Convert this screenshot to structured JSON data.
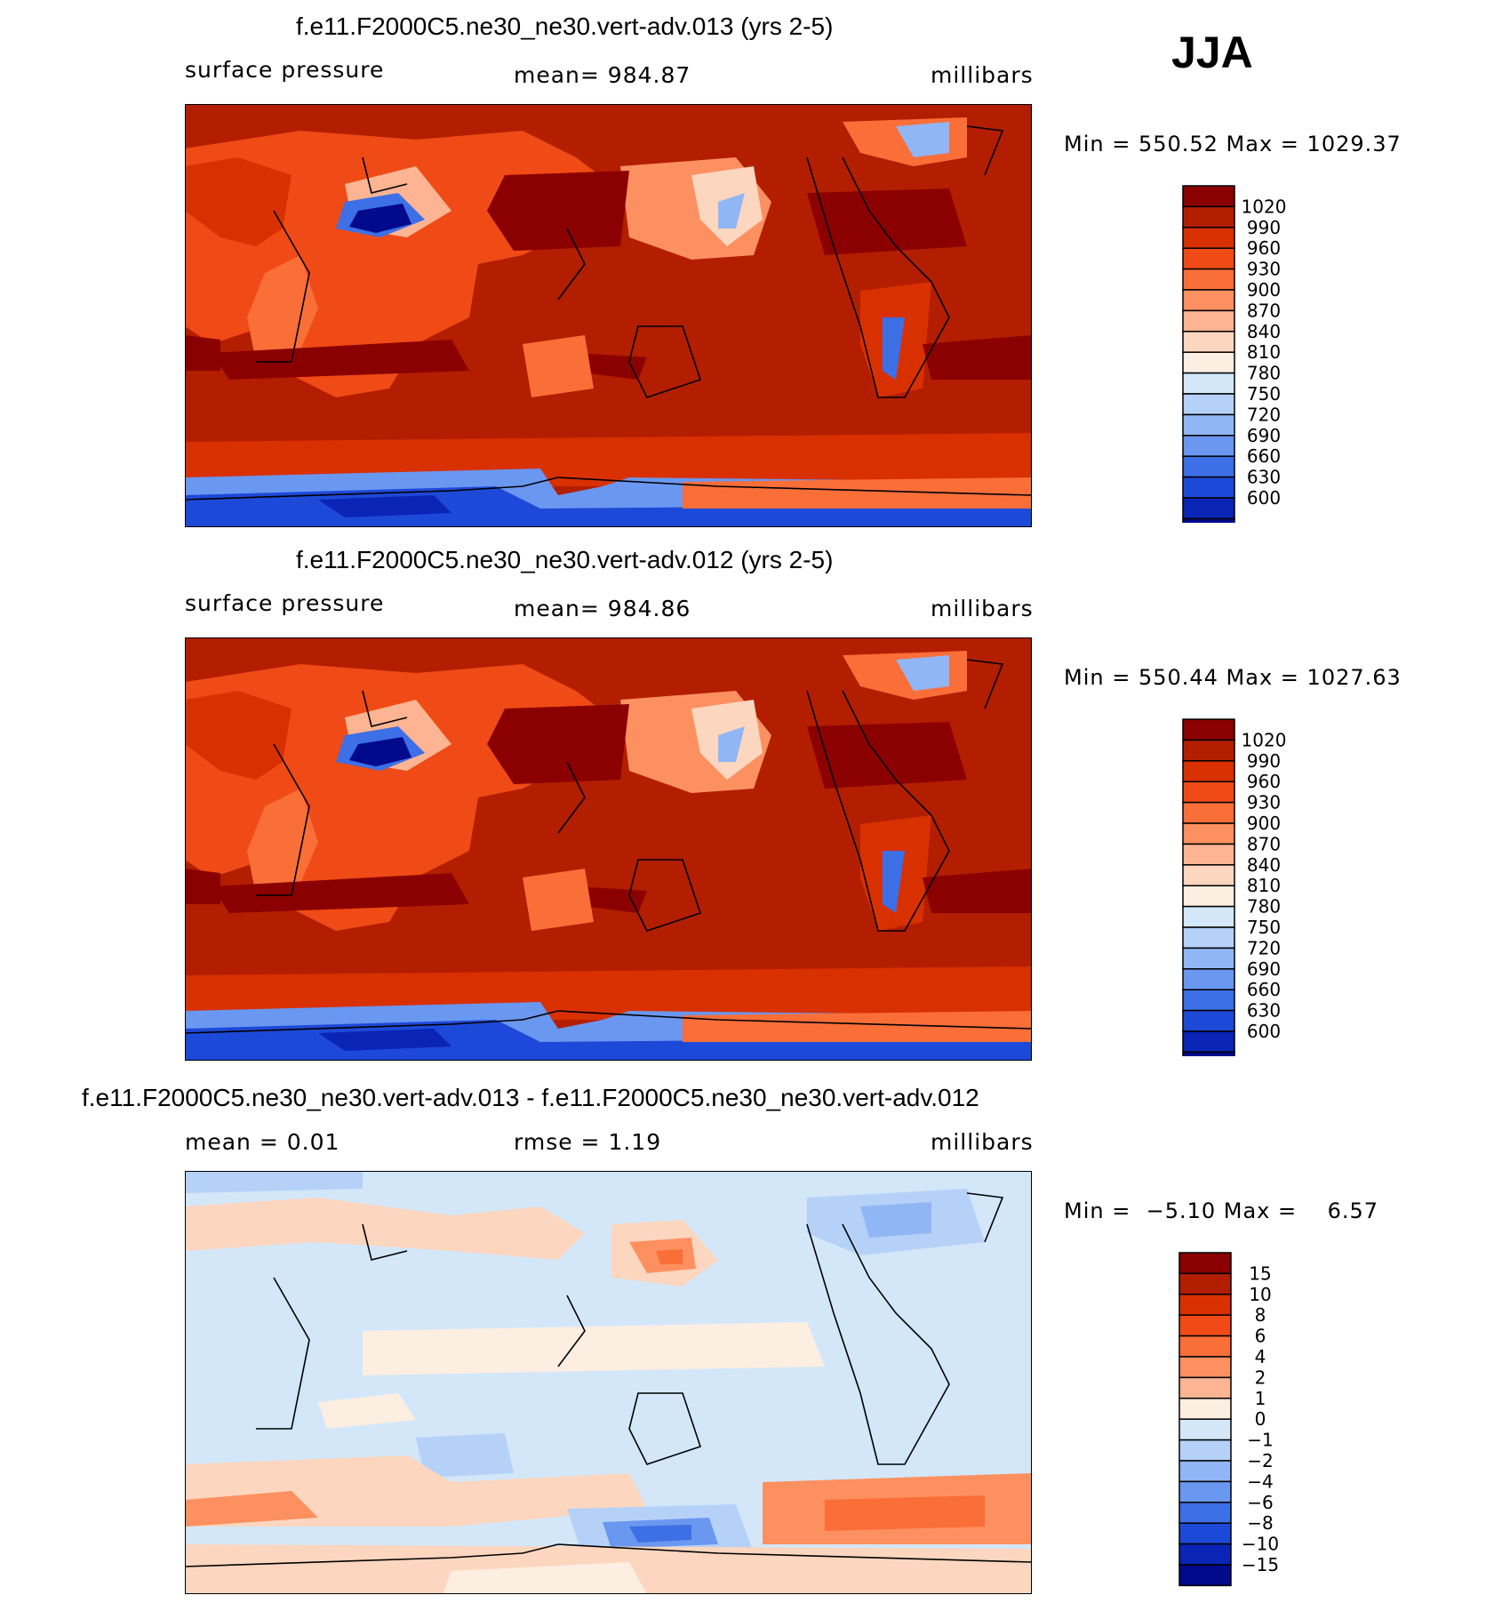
{
  "season": "JJA",
  "panels": [
    {
      "title": "f.e11.F2000C5.ne30_ne30.vert-adv.013 (yrs 2-5)",
      "left_label": "surface pressure",
      "center_label": "mean= 984.87",
      "right_label": "millibars",
      "minmax": "Min = 550.52 Max = 1029.37"
    },
    {
      "title": "f.e11.F2000C5.ne30_ne30.vert-adv.012 (yrs 2-5)",
      "left_label": "surface pressure",
      "center_label": "mean= 984.86",
      "right_label": "millibars",
      "minmax": "Min = 550.44 Max = 1027.63"
    },
    {
      "title": "f.e11.F2000C5.ne30_ne30.vert-adv.013 - f.e11.F2000C5.ne30_ne30.vert-adv.012",
      "left_label": "mean =    0.01",
      "center_label": "rmse =    1.19",
      "right_label": "millibars",
      "minmax": "Min =  −5.10 Max =    6.57"
    }
  ],
  "chart_data": [
    {
      "type": "heatmap",
      "title": "f.e11.F2000C5.ne30_ne30.vert-adv.013 (yrs 2-5)",
      "variable": "surface pressure",
      "units": "millibars",
      "mean": 984.87,
      "min": 550.52,
      "max": 1029.37,
      "colorbar_levels": [
        "1020",
        "990",
        "960",
        "930",
        "900",
        "870",
        "840",
        "810",
        "780",
        "750",
        "720",
        "690",
        "660",
        "630",
        "600"
      ],
      "colorbar_colors": [
        "#8b0000",
        "#b31e00",
        "#d93000",
        "#f04a16",
        "#fa6e38",
        "#fd9060",
        "#fdb492",
        "#fdd6bf",
        "#fdeee2",
        "#d3e7f9",
        "#b5d1f7",
        "#91b6f5",
        "#6a97f0",
        "#3d6fe6",
        "#1d49d8",
        "#0a24b5",
        "#000a8a"
      ]
    },
    {
      "type": "heatmap",
      "title": "f.e11.F2000C5.ne30_ne30.vert-adv.012 (yrs 2-5)",
      "variable": "surface pressure",
      "units": "millibars",
      "mean": 984.86,
      "min": 550.44,
      "max": 1027.63,
      "colorbar_levels": [
        "1020",
        "990",
        "960",
        "930",
        "900",
        "870",
        "840",
        "810",
        "780",
        "750",
        "720",
        "690",
        "660",
        "630",
        "600"
      ],
      "colorbar_colors": [
        "#8b0000",
        "#b31e00",
        "#d93000",
        "#f04a16",
        "#fa6e38",
        "#fd9060",
        "#fdb492",
        "#fdd6bf",
        "#fdeee2",
        "#d3e7f9",
        "#b5d1f7",
        "#91b6f5",
        "#6a97f0",
        "#3d6fe6",
        "#1d49d8",
        "#0a24b5",
        "#000a8a"
      ]
    },
    {
      "type": "heatmap",
      "title": "f.e11.F2000C5.ne30_ne30.vert-adv.013 - f.e11.F2000C5.ne30_ne30.vert-adv.012",
      "units": "millibars",
      "mean": 0.01,
      "rmse": 1.19,
      "min": -5.1,
      "max": 6.57,
      "colorbar_levels": [
        "15",
        "10",
        "8",
        "6",
        "4",
        "2",
        "1",
        "0",
        "−1",
        "−2",
        "−4",
        "−6",
        "−8",
        "−10",
        "−15"
      ],
      "colorbar_colors": [
        "#8b0000",
        "#b31e00",
        "#d93000",
        "#f04a16",
        "#fa6e38",
        "#fd9060",
        "#fdb492",
        "#fdeee2",
        "#d3e7f9",
        "#b5d1f7",
        "#91b6f5",
        "#6a97f0",
        "#3d6fe6",
        "#1d49d8",
        "#0a24b5",
        "#000a8a"
      ]
    }
  ]
}
